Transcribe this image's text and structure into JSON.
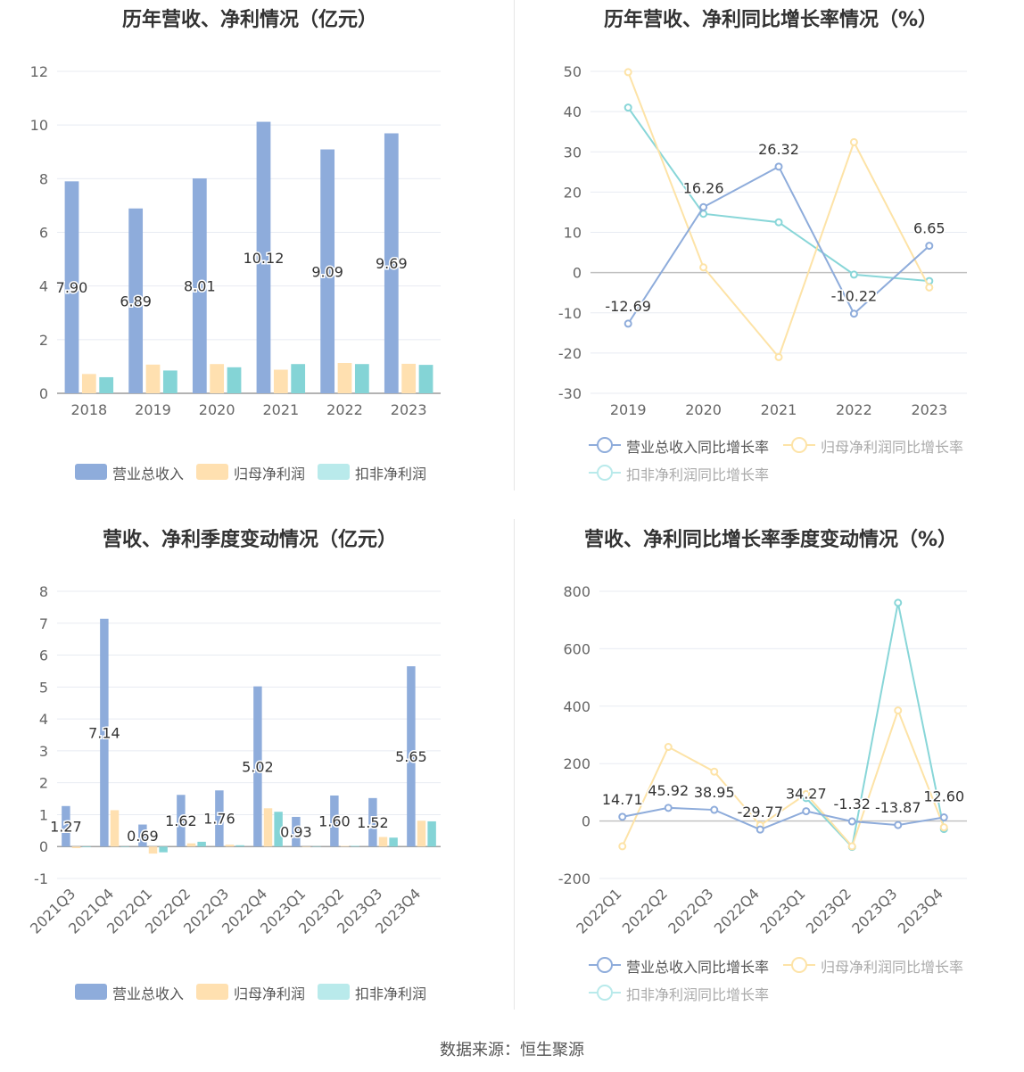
{
  "panels": {
    "annual_bar": {
      "title": "历年营收、净利情况（亿元）"
    },
    "annual_line": {
      "title": "历年营收、净利同比增长率情况（%）"
    },
    "quarter_bar": {
      "title": "营收、净利季度变动情况（亿元）"
    },
    "quarter_line": {
      "title": "营收、净利同比增长率季度变动情况（%）"
    }
  },
  "colors": {
    "revenue": "#8eacdb",
    "net_profit": "#ffe0b0",
    "deducted_profit": "#84d4d6",
    "net_profit_line": "#fde3a7",
    "deducted_line": "#88d6d8",
    "revenue_legend": "#8eacdb",
    "net_profit_legend": "#ffe0b0",
    "deducted_legend": "#b9eaeb"
  },
  "legend": {
    "bar": [
      "营业总收入",
      "归母净利润",
      "扣非净利润"
    ],
    "line": [
      "营业总收入同比增长率",
      "归母净利润同比增长率",
      "扣非净利润同比增长率"
    ]
  },
  "source": "数据来源：恒生聚源",
  "chart_data": [
    {
      "id": "annual_bar",
      "type": "bar",
      "categories": [
        "2018",
        "2019",
        "2020",
        "2021",
        "2022",
        "2023"
      ],
      "series": [
        {
          "name": "营业总收入",
          "values": [
            7.9,
            6.89,
            8.01,
            10.12,
            9.09,
            9.69
          ],
          "labels": [
            "7.90",
            "6.89",
            "8.01",
            "10.12",
            "9.09",
            "9.69"
          ]
        },
        {
          "name": "归母净利润",
          "values": [
            0.72,
            1.07,
            1.09,
            0.88,
            1.13,
            1.1
          ]
        },
        {
          "name": "扣非净利润",
          "values": [
            0.6,
            0.85,
            0.97,
            1.09,
            1.09,
            1.06
          ]
        }
      ],
      "ylim": [
        0,
        12
      ],
      "yticks": [
        "0",
        "2",
        "4",
        "6",
        "8",
        "10",
        "12"
      ],
      "grid": true
    },
    {
      "id": "annual_line",
      "type": "line",
      "categories": [
        "2019",
        "2020",
        "2021",
        "2022",
        "2023"
      ],
      "series": [
        {
          "name": "营业总收入同比增长率",
          "values": [
            -12.69,
            16.26,
            26.32,
            -10.22,
            6.65
          ],
          "labels": [
            "-12.69",
            "16.26",
            "26.32",
            "-10.22",
            "6.65"
          ]
        },
        {
          "name": "归母净利润同比增长率",
          "values": [
            49.8,
            1.3,
            -21.0,
            32.4,
            -3.7
          ]
        },
        {
          "name": "扣非净利润同比增长率",
          "values": [
            41.0,
            14.6,
            12.5,
            -0.5,
            -2.1
          ]
        }
      ],
      "ylim": [
        -30,
        50
      ],
      "yticks": [
        "-30",
        "-20",
        "-10",
        "0",
        "10",
        "20",
        "30",
        "40",
        "50"
      ],
      "grid": true
    },
    {
      "id": "quarter_bar",
      "type": "bar",
      "categories": [
        "2021Q3",
        "2021Q4",
        "2022Q1",
        "2022Q2",
        "2022Q3",
        "2022Q4",
        "2023Q1",
        "2023Q2",
        "2023Q3",
        "2023Q4"
      ],
      "series": [
        {
          "name": "营业总收入",
          "values": [
            1.27,
            7.14,
            0.69,
            1.62,
            1.76,
            5.02,
            0.93,
            1.6,
            1.52,
            5.65
          ],
          "labels": [
            "1.27",
            "7.14",
            "0.69",
            "1.62",
            "1.76",
            "5.02",
            "0.93",
            "1.60",
            "1.52",
            "5.65"
          ]
        },
        {
          "name": "归母净利润",
          "values": [
            -0.05,
            1.14,
            -0.22,
            0.1,
            0.06,
            1.2,
            0.0,
            0.02,
            0.3,
            0.81
          ]
        },
        {
          "name": "扣非净利润",
          "values": [
            -0.02,
            0.0,
            -0.18,
            0.15,
            0.04,
            1.09,
            0.01,
            0.02,
            0.28,
            0.79
          ]
        }
      ],
      "ylim": [
        -1,
        8
      ],
      "yticks": [
        "-1",
        "0",
        "1",
        "2",
        "3",
        "4",
        "5",
        "6",
        "7",
        "8"
      ],
      "grid": true
    },
    {
      "id": "quarter_line",
      "type": "line",
      "categories": [
        "2022Q1",
        "2022Q2",
        "2022Q3",
        "2022Q4",
        "2023Q1",
        "2023Q2",
        "2023Q3",
        "2023Q4"
      ],
      "series": [
        {
          "name": "营业总收入同比增长率",
          "values": [
            14.71,
            45.92,
            38.95,
            -29.77,
            34.27,
            -1.32,
            -13.87,
            12.6
          ],
          "labels": [
            "14.71",
            "45.92",
            "38.95",
            "-29.77",
            "34.27",
            "-1.32",
            "-13.87",
            "12.60"
          ]
        },
        {
          "name": "归母净利润同比增长率",
          "values": [
            -88,
            258,
            172,
            -15,
            94,
            -88,
            385,
            -22
          ]
        },
        {
          "name": "扣非净利润同比增长率",
          "values": [
            null,
            null,
            null,
            null,
            80,
            -90,
            760,
            -28
          ]
        }
      ],
      "ylim": [
        -200,
        800
      ],
      "yticks": [
        "-200",
        "0",
        "200",
        "400",
        "600",
        "800"
      ],
      "grid": true
    }
  ]
}
